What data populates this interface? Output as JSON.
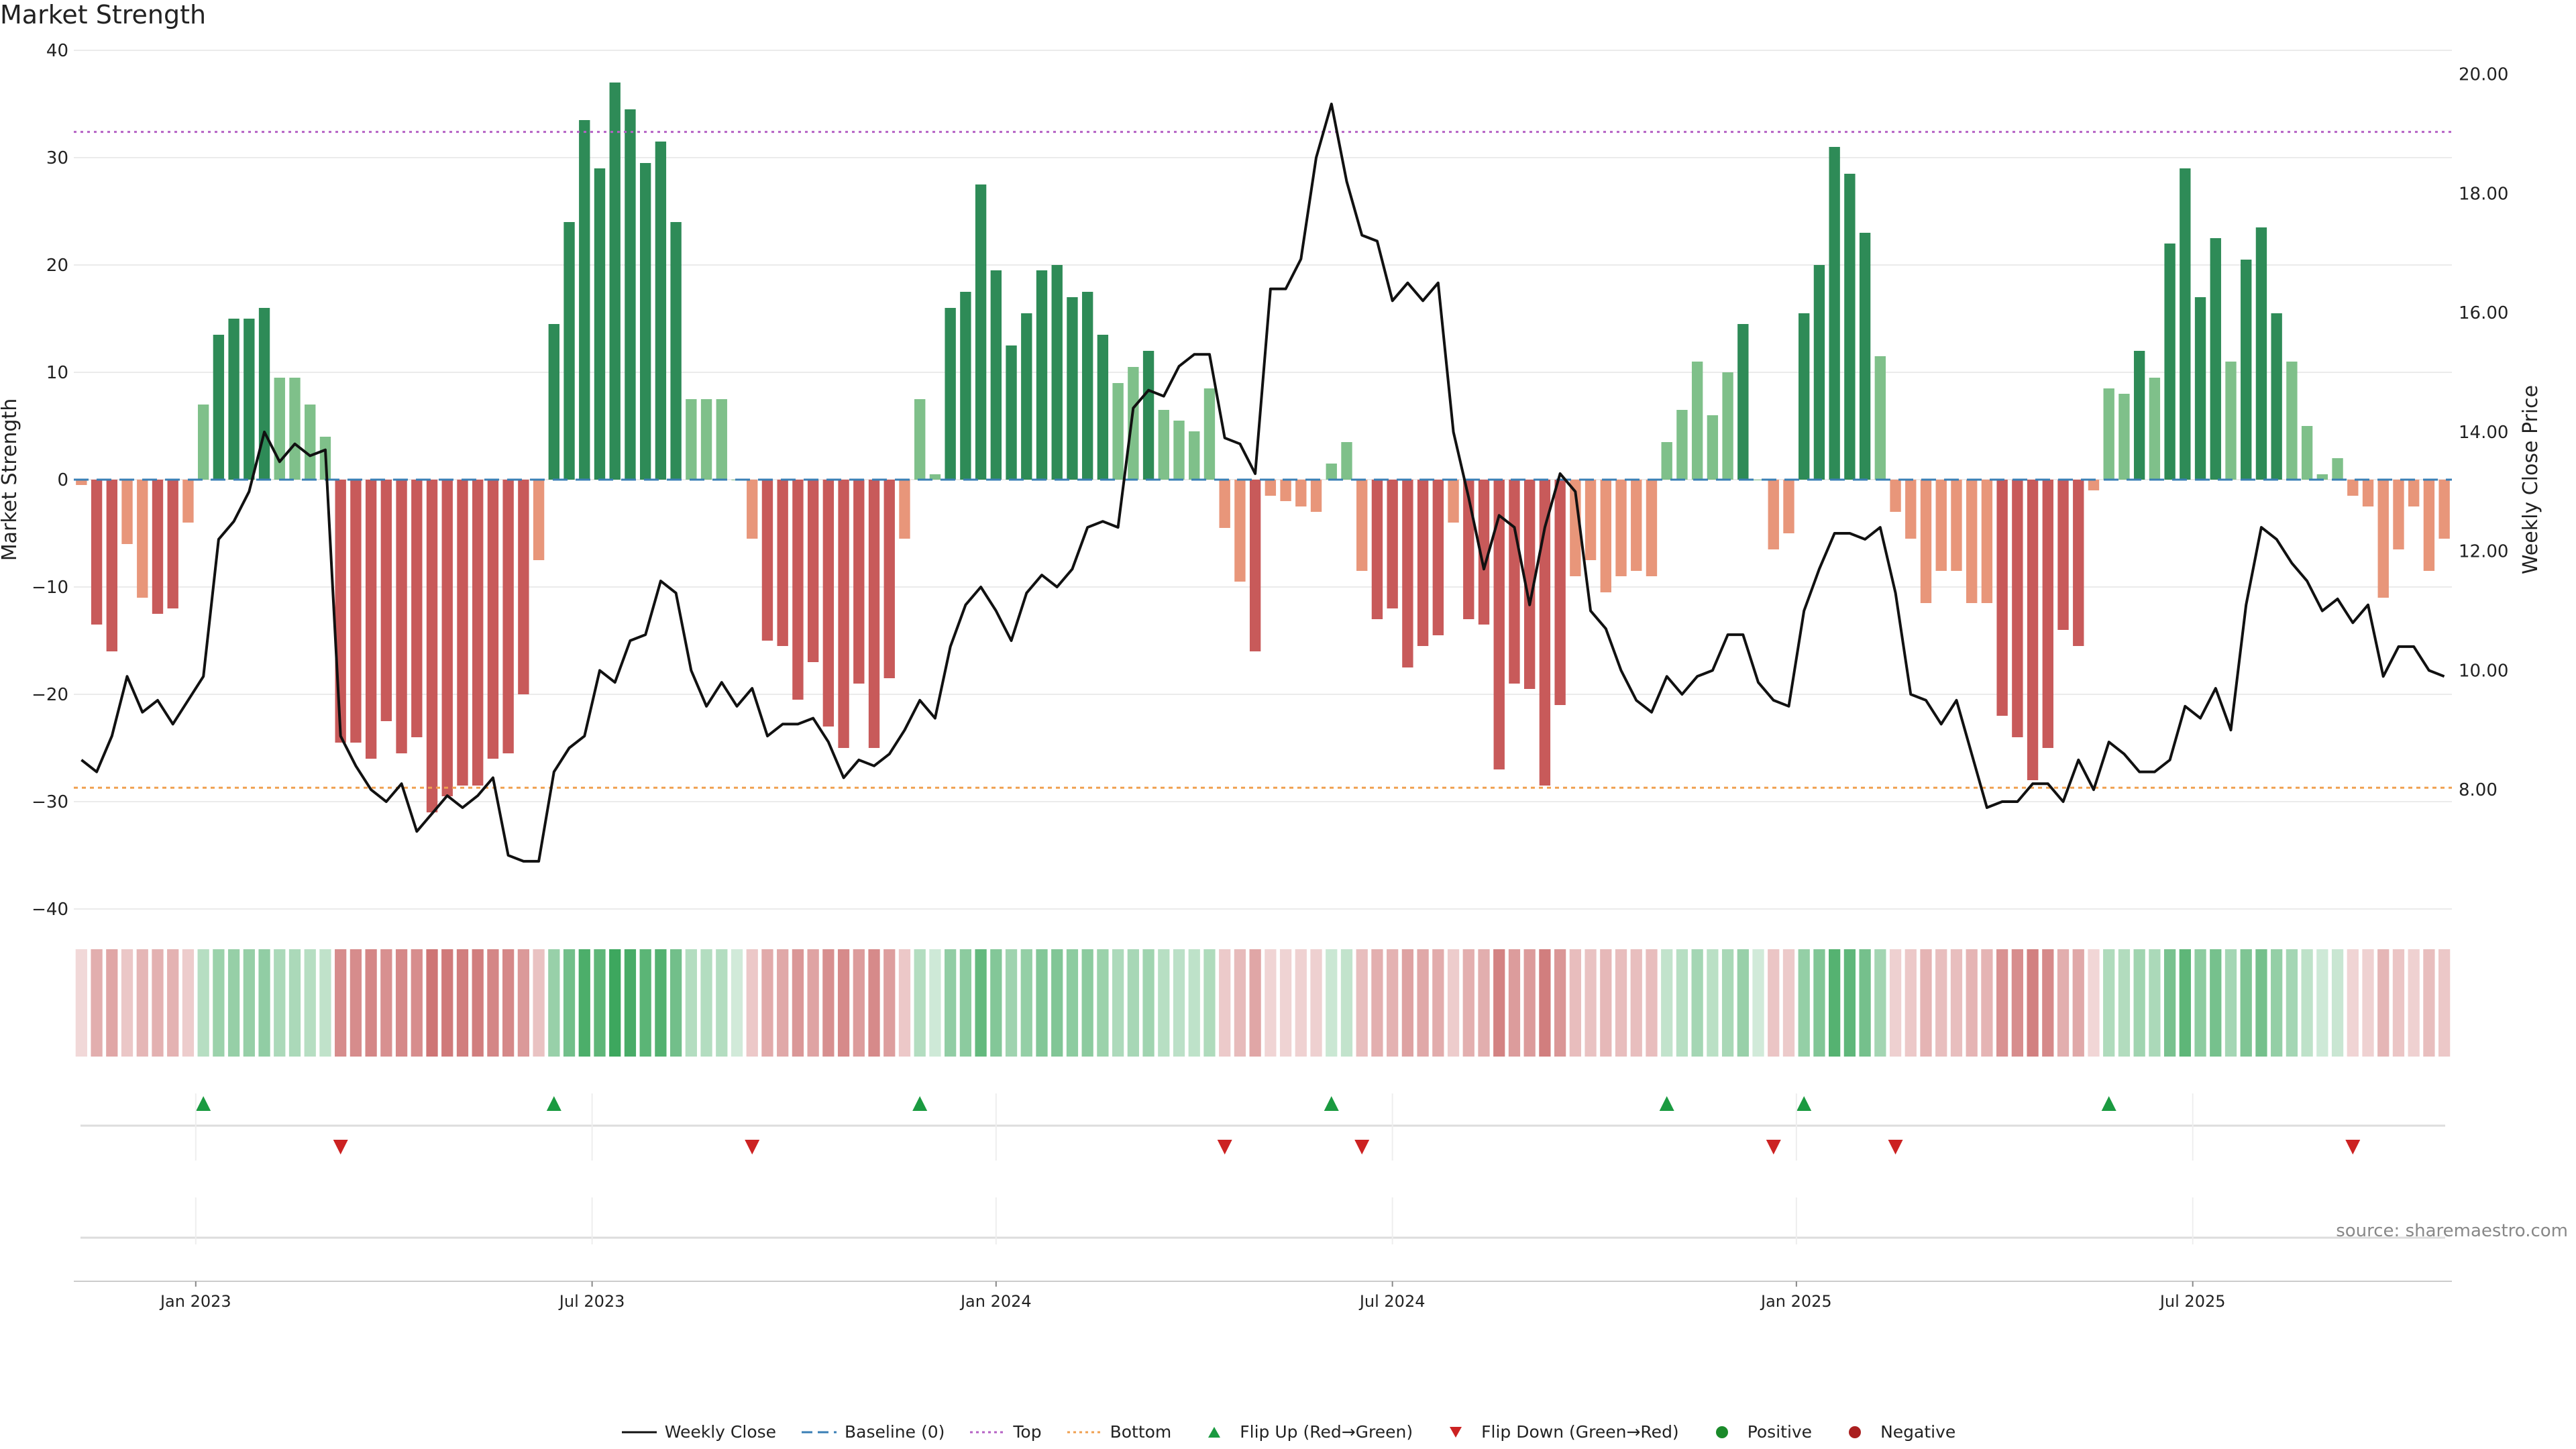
{
  "title": "Market Strength",
  "source": "source: sharemaestro.com",
  "colors": {
    "pos_dark": "#2e8b57",
    "pos_light": "#7fc08a",
    "neg_dark": "#c85a5a",
    "neg_light": "#e8967a",
    "top_line": "#b562c4",
    "bottom_line": "#f0a050",
    "baseline": "#3a7fb5",
    "close": "#111111",
    "flip_up": "#1a9a40",
    "flip_down": "#cc2222",
    "positive": "#1a8a2a",
    "negative": "#aa1f1f"
  },
  "legend": [
    {
      "label": "Weekly Close",
      "kind": "line",
      "color": "#111111"
    },
    {
      "label": "Baseline (0)",
      "kind": "dashed",
      "color": "#3a7fb5"
    },
    {
      "label": "Top",
      "kind": "dotted",
      "color": "#b562c4"
    },
    {
      "label": "Bottom",
      "kind": "dotted",
      "color": "#f0a050"
    },
    {
      "label": "Flip Up (Red→Green)",
      "kind": "triangle-up",
      "color": "#1a9a40"
    },
    {
      "label": "Flip Down (Green→Red)",
      "kind": "triangle-down",
      "color": "#cc2222"
    },
    {
      "label": "Positive",
      "kind": "dot",
      "color": "#1a8a2a"
    },
    {
      "label": "Negative",
      "kind": "dot",
      "color": "#aa1f1f"
    }
  ],
  "chart_data": {
    "type": "bar",
    "title": "Market Strength",
    "ylabel": "Market Strength",
    "y2label": "Weekly Close Price",
    "ylim": [
      -40,
      40
    ],
    "y_ticks": [
      "40",
      "30",
      "20",
      "10",
      "0",
      "−10",
      "−20",
      "−30",
      "−40"
    ],
    "y2lim": [
      6.0,
      20.4
    ],
    "y2_ticks": [
      "20.00",
      "18.00",
      "16.00",
      "14.00",
      "12.00",
      "10.00",
      "8.00"
    ],
    "top_level": 32.4,
    "bottom_level": -28.7,
    "x_tick_labels": [
      "Jan 2023",
      "Jul 2023",
      "Jan 2024",
      "Jul 2024",
      "Jan 2025",
      "Jul 2025"
    ],
    "x_tick_weeks": [
      8,
      34,
      60.5,
      86.5,
      113,
      139
    ],
    "strength": [
      -0.5,
      -13.5,
      -16,
      -6,
      -11,
      -12.5,
      -12,
      -4,
      7,
      13.5,
      15,
      15,
      16,
      9.5,
      9.5,
      7,
      4,
      -24.5,
      -24.5,
      -26,
      -22.5,
      -25.5,
      -24,
      -31,
      -29.5,
      -28.5,
      -28.5,
      -26,
      -25.5,
      -20,
      -7.5,
      14.5,
      24,
      33.5,
      29,
      37,
      34.5,
      29.5,
      31.5,
      24,
      7.5,
      7.5,
      7.5,
      0,
      -5.5,
      -15,
      -15.5,
      -20.5,
      -17,
      -23,
      -25,
      -19,
      -25,
      -18.5,
      -5.5,
      7.5,
      0.5,
      16,
      17.5,
      27.5,
      19.5,
      12.5,
      15.5,
      19.5,
      20,
      17,
      17.5,
      13.5,
      9,
      10.5,
      12,
      6.5,
      5.5,
      4.5,
      8.5,
      -4.5,
      -9.5,
      -16,
      -1.5,
      -2,
      -2.5,
      -3,
      1.5,
      3.5,
      -8.5,
      -13,
      -12,
      -17.5,
      -15.5,
      -14.5,
      -4,
      -13,
      -13.5,
      -27,
      -19,
      -19.5,
      -28.5,
      -21,
      -9,
      -7.5,
      -10.5,
      -9,
      -8.5,
      -9,
      3.5,
      6.5,
      11,
      6,
      10,
      14.5,
      0,
      -6.5,
      -5,
      15.5,
      20,
      31,
      28.5,
      23,
      11.5,
      -3,
      -5.5,
      -11.5,
      -8.5,
      -8.5,
      -11.5,
      -11.5,
      -22,
      -24,
      -28,
      -25,
      -14,
      -15.5,
      -1,
      8.5,
      8,
      12,
      9.5,
      22,
      29,
      17,
      22.5,
      11,
      20.5,
      23.5,
      15.5,
      11,
      5,
      0.5,
      2,
      -1.5,
      -2.5,
      -11,
      -6.5,
      -2.5,
      -8.5,
      -5.5
    ],
    "close": [
      8.5,
      8.3,
      8.9,
      9.9,
      9.3,
      9.5,
      9.1,
      9.5,
      9.9,
      12.2,
      12.5,
      13.0,
      14.0,
      13.5,
      13.8,
      13.6,
      13.7,
      8.9,
      8.4,
      8.0,
      7.8,
      8.1,
      7.3,
      7.6,
      7.9,
      7.7,
      7.9,
      8.2,
      6.9,
      6.8,
      6.8,
      8.3,
      8.7,
      8.9,
      10.0,
      9.8,
      10.5,
      10.6,
      11.5,
      11.3,
      10.0,
      9.4,
      9.8,
      9.4,
      9.7,
      8.9,
      9.1,
      9.1,
      9.2,
      8.8,
      8.2,
      8.5,
      8.4,
      8.6,
      9.0,
      9.5,
      9.2,
      10.4,
      11.1,
      11.4,
      11.0,
      10.5,
      11.3,
      11.6,
      11.4,
      11.7,
      12.4,
      12.5,
      12.4,
      14.4,
      14.7,
      14.6,
      15.1,
      15.3,
      15.3,
      13.9,
      13.8,
      13.3,
      16.4,
      16.4,
      16.9,
      18.6,
      19.5,
      18.2,
      17.3,
      17.2,
      16.2,
      16.5,
      16.2,
      16.5,
      14.0,
      12.9,
      11.7,
      12.6,
      12.4,
      11.1,
      12.4,
      13.3,
      13.0,
      11.0,
      10.7,
      10.0,
      9.5,
      9.3,
      9.9,
      9.6,
      9.9,
      10.0,
      10.6,
      10.6,
      9.8,
      9.5,
      9.4,
      11.0,
      11.7,
      12.3,
      12.3,
      12.2,
      12.4,
      11.3,
      9.6,
      9.5,
      9.1,
      9.5,
      8.6,
      7.7,
      7.8,
      7.8,
      8.1,
      8.1,
      7.8,
      8.5,
      8.0,
      8.8,
      8.6,
      8.3,
      8.3,
      8.5,
      9.4,
      9.2,
      9.7,
      9.0,
      11.1,
      12.4,
      12.2,
      11.8,
      11.5,
      11.0,
      11.2,
      10.8,
      11.1,
      9.9,
      10.4,
      10.4,
      10.0,
      9.9
    ]
  }
}
